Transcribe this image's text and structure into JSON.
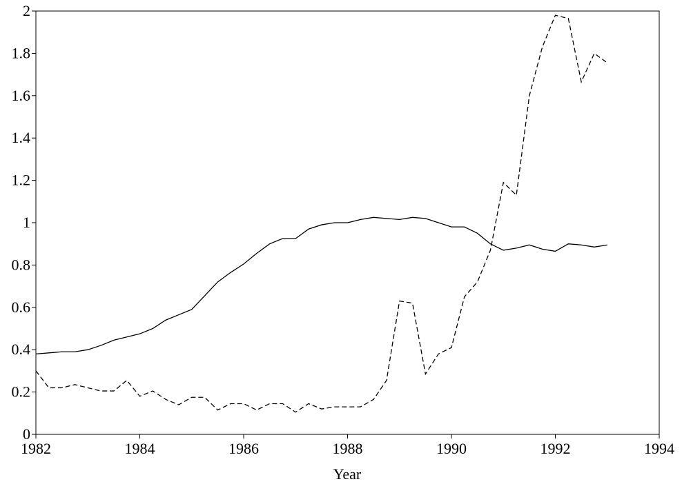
{
  "chart_data": {
    "type": "line",
    "x_label": "Year",
    "x": [
      1982,
      1982.25,
      1982.5,
      1982.75,
      1983,
      1983.25,
      1983.5,
      1983.75,
      1984,
      1984.25,
      1984.5,
      1984.75,
      1985,
      1985.25,
      1985.5,
      1985.75,
      1986,
      1986.25,
      1986.5,
      1986.75,
      1987,
      1987.25,
      1987.5,
      1987.75,
      1988,
      1988.25,
      1988.5,
      1988.75,
      1989,
      1989.25,
      1989.5,
      1989.75,
      1990,
      1990.25,
      1990.5,
      1990.75,
      1991,
      1991.25,
      1991.5,
      1991.75,
      1992,
      1992.25,
      1992.5,
      1992.75,
      1993
    ],
    "series": [
      {
        "color": "#000000",
        "dash": "solid",
        "values": [
          0.38,
          0.385,
          0.39,
          0.39,
          0.4,
          0.42,
          0.445,
          0.46,
          0.475,
          0.5,
          0.54,
          0.565,
          0.59,
          0.655,
          0.72,
          0.765,
          0.805,
          0.855,
          0.9,
          0.925,
          0.925,
          0.97,
          0.99,
          1.0,
          1.0,
          1.015,
          1.025,
          1.02,
          1.015,
          1.025,
          1.02,
          1.0,
          0.98,
          0.98,
          0.95,
          0.9,
          0.87,
          0.88,
          0.895,
          0.875,
          0.865,
          0.9,
          0.895,
          0.885,
          0.895
        ]
      },
      {
        "color": "#000000",
        "dash": "dashed",
        "values": [
          0.3,
          0.22,
          0.22,
          0.235,
          0.22,
          0.205,
          0.205,
          0.255,
          0.18,
          0.205,
          0.165,
          0.14,
          0.175,
          0.175,
          0.115,
          0.145,
          0.145,
          0.115,
          0.145,
          0.145,
          0.105,
          0.145,
          0.12,
          0.13,
          0.13,
          0.13,
          0.165,
          0.255,
          0.63,
          0.62,
          0.285,
          0.38,
          0.41,
          0.65,
          0.72,
          0.87,
          1.19,
          1.13,
          1.6,
          1.83,
          1.98,
          1.965,
          1.665,
          1.8,
          1.755
        ]
      }
    ],
    "xlim": [
      1982,
      1994
    ],
    "xticks": [
      1982,
      1984,
      1986,
      1988,
      1990,
      1992,
      1994
    ],
    "ylim": [
      0,
      2
    ],
    "yticks": [
      0,
      0.2,
      0.4,
      0.6,
      0.8,
      1,
      1.2,
      1.4,
      1.6,
      1.8,
      2
    ],
    "grid": false
  }
}
